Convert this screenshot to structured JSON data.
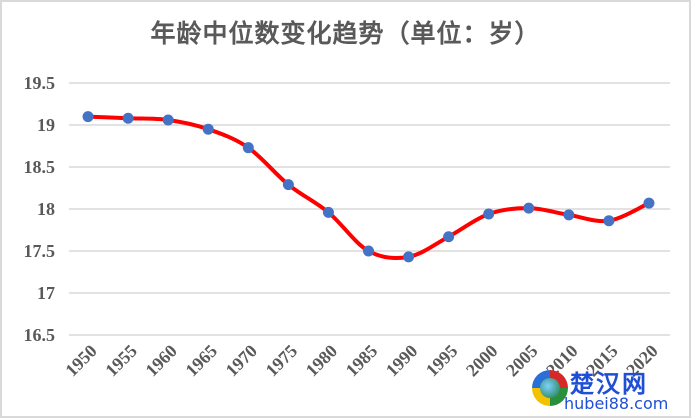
{
  "chart_data": {
    "type": "line",
    "title": "年龄中位数变化趋势（单位：岁）",
    "xlabel": "",
    "ylabel": "",
    "categories": [
      "1950",
      "1955",
      "1960",
      "1965",
      "1970",
      "1975",
      "1980",
      "1985",
      "1990",
      "1995",
      "2000",
      "2005",
      "2010",
      "2015",
      "2020"
    ],
    "series": [
      {
        "name": "年龄中位数",
        "values": [
          19.1,
          19.08,
          19.06,
          18.95,
          18.73,
          18.29,
          17.96,
          17.5,
          17.43,
          17.67,
          17.94,
          18.01,
          17.93,
          17.86,
          18.07
        ],
        "line_color": "#ff0000",
        "marker_color": "#4472c4",
        "smooth": true
      }
    ],
    "ylim": [
      16.5,
      19.5
    ],
    "yticks": [
      "19.5",
      "19",
      "18.5",
      "18",
      "17.5",
      "17",
      "16.5"
    ],
    "grid": true,
    "legend": "none"
  },
  "watermark": {
    "cn": "楚汉网",
    "en": "hubei88.com"
  }
}
